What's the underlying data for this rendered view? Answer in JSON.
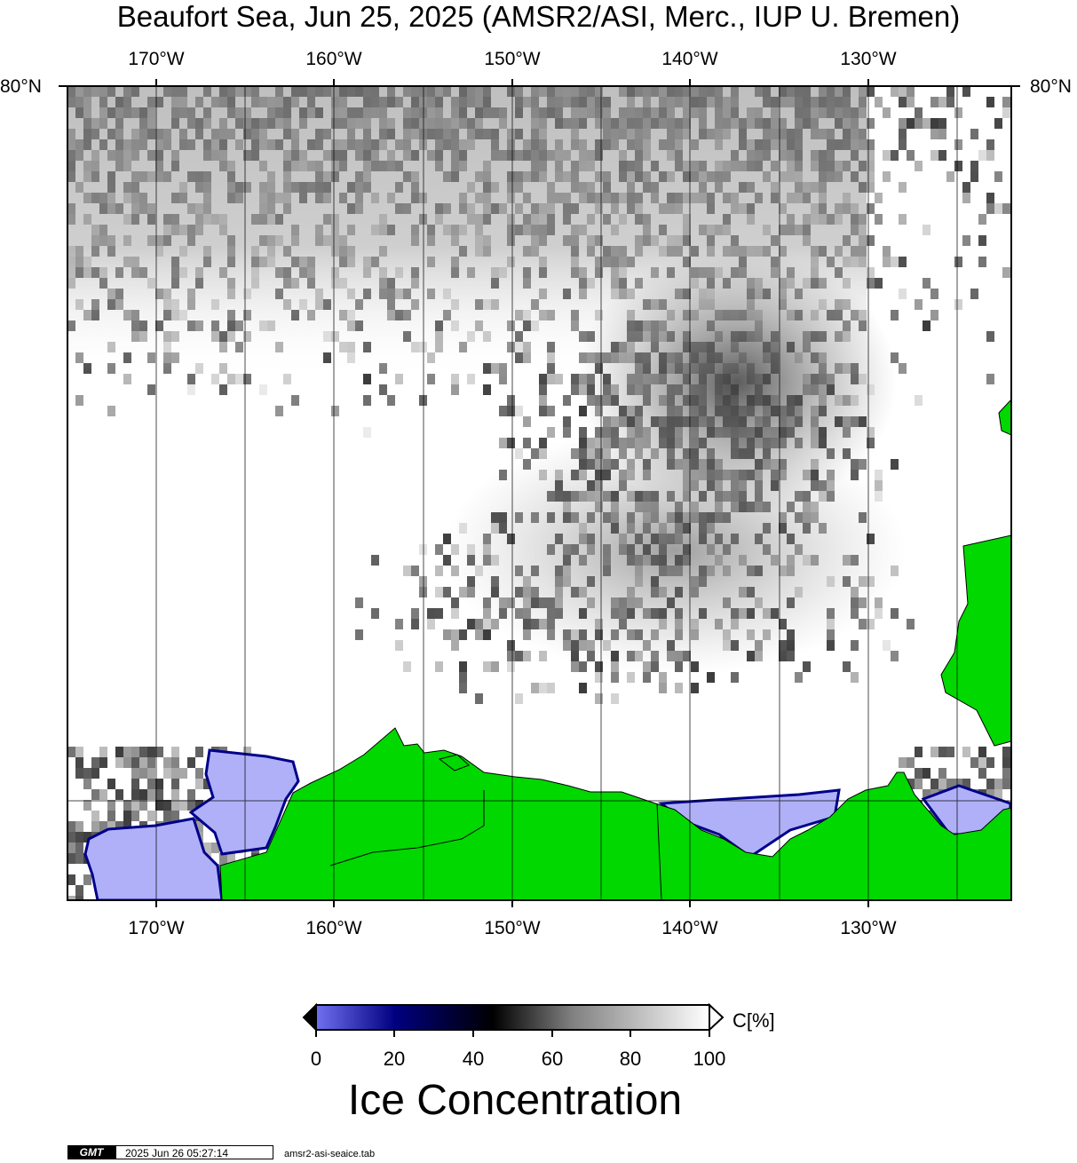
{
  "title": "Beaufort Sea, Jun 25, 2025 (AMSR2/ASI, Merc., IUP U. Bremen)",
  "map": {
    "lon_labels": [
      "170°W",
      "160°W",
      "150°W",
      "140°W",
      "130°W"
    ],
    "lat_label_left": "80°N",
    "lat_label_right": "80°N",
    "colors": {
      "land": "#00d800",
      "low_ice": "#b0b0f8",
      "open_water": "#ffffff",
      "mid_ice": "#000066",
      "frame": "#000000"
    }
  },
  "colorbar": {
    "unit_label": "C[%]",
    "ticks": [
      "0",
      "20",
      "40",
      "60",
      "80",
      "100"
    ],
    "title": "Ice Concentration",
    "stops": [
      "#7070f0",
      "#000080",
      "#000000",
      "#808080",
      "#ffffff"
    ]
  },
  "footer": {
    "logo": "GMT",
    "timestamp": "2025 Jun 26 05:27:14",
    "filename": "amsr2-asi-seaice.tab"
  }
}
